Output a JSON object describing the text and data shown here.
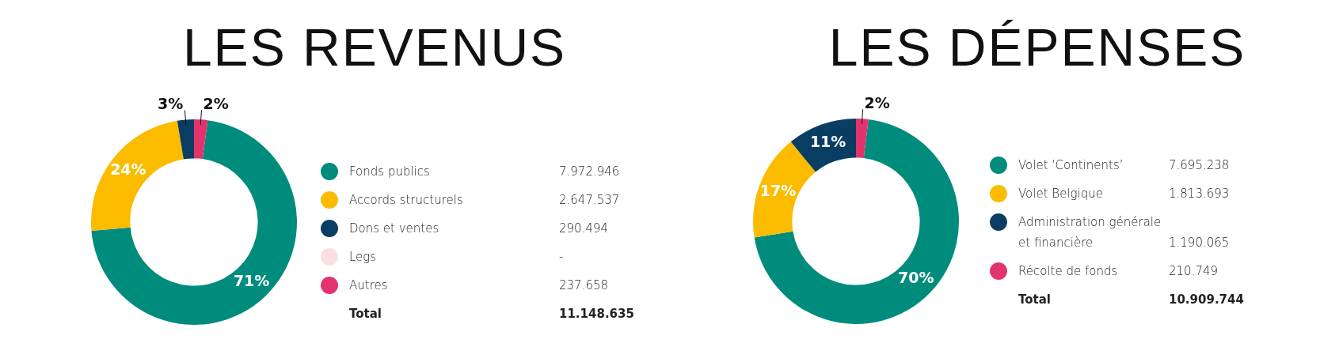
{
  "chart_data": [
    {
      "type": "donut",
      "title": "LES REVENUS",
      "legend": "right",
      "categories": [
        "Fonds publics",
        "Accords structurels",
        "Dons et ventes",
        "Legs",
        "Autres"
      ],
      "values": [
        7972946,
        2647537,
        290494,
        null,
        237658
      ],
      "colors": [
        "#008c7c",
        "#fbbc00",
        "#0a3d62",
        "#f9dfe0",
        "#e3336f"
      ],
      "value_labels": [
        "7.972.946",
        "2.647.537",
        "290.494",
        "-",
        "237.658"
      ],
      "annotations": [
        {
          "text": "71%",
          "x": "Fonds publics"
        },
        {
          "text": "24%",
          "x": "Accords structurels"
        },
        {
          "text": "3%",
          "x": "Dons et ventes"
        },
        {
          "text": "2%",
          "x": "Autres"
        },
        "Total",
        "11.148.635"
      ]
    },
    {
      "type": "donut",
      "title": "LES DÉPENSES",
      "legend": "right",
      "categories": [
        "Volet ‘Continents’",
        "Volet Belgique",
        "Administration générale et financière",
        "Récolte de fonds"
      ],
      "values": [
        7695238,
        1813693,
        1190065,
        210749
      ],
      "colors": [
        "#008c7c",
        "#fbbc00",
        "#0a3d62",
        "#e3336f"
      ],
      "value_labels": [
        "7.695.238",
        "1.813.693",
        "1.190.065",
        "210.749"
      ],
      "annotations": [
        {
          "text": "70%",
          "x": "Volet ‘Continents’"
        },
        {
          "text": "17%",
          "x": "Volet Belgique"
        },
        {
          "text": "11%",
          "x": "Administration générale et financière"
        },
        {
          "text": "2%",
          "x": "Récolte de fonds"
        },
        "Total",
        "10.909.744"
      ]
    }
  ]
}
